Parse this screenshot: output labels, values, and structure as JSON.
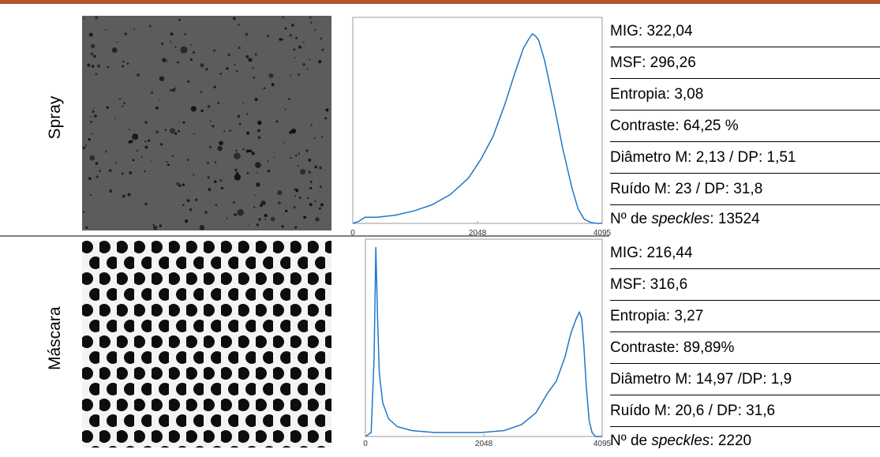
{
  "rows": [
    {
      "label": "Spray",
      "histogram": {
        "type": "line",
        "xlim": [
          0,
          4095
        ],
        "ylim": [
          0,
          1
        ],
        "xticks": [
          0,
          2048,
          4095
        ],
        "color": "#1f77c8",
        "x": [
          0,
          100,
          200,
          300,
          400,
          700,
          1000,
          1300,
          1600,
          1900,
          2100,
          2300,
          2500,
          2650,
          2800,
          2900,
          2950,
          3000,
          3050,
          3150,
          3300,
          3450,
          3600,
          3700,
          3800,
          3900,
          4000,
          4095
        ],
        "values": [
          0,
          0.01,
          0.03,
          0.03,
          0.03,
          0.04,
          0.06,
          0.09,
          0.14,
          0.22,
          0.31,
          0.42,
          0.58,
          0.72,
          0.85,
          0.9,
          0.92,
          0.91,
          0.89,
          0.79,
          0.58,
          0.36,
          0.17,
          0.07,
          0.02,
          0.005,
          0,
          0
        ]
      },
      "stats": [
        "MIG: 322,04",
        "MSF: 296,26",
        "Entropia: 3,08",
        "Contraste: 64,25 %",
        "Diâmetro M: 2,13 / DP: 1,51",
        "Ruído M: 23 / DP: 31,8"
      ],
      "speckles": {
        "prefix": "Nº de ",
        "emph": "speckles",
        "suffix": ": 13524"
      }
    },
    {
      "label": "Máscara",
      "histogram": {
        "type": "line",
        "xlim": [
          0,
          4095
        ],
        "ylim": [
          0,
          1
        ],
        "xticks": [
          0,
          2048,
          4095
        ],
        "color": "#1f77c8",
        "x": [
          0,
          100,
          150,
          180,
          210,
          240,
          300,
          400,
          550,
          800,
          1200,
          1600,
          2000,
          2400,
          2700,
          2950,
          3150,
          3300,
          3450,
          3550,
          3650,
          3700,
          3740,
          3780,
          3820,
          3870,
          3920,
          3980,
          4095
        ],
        "values": [
          0,
          0.02,
          0.4,
          0.96,
          0.6,
          0.32,
          0.17,
          0.09,
          0.05,
          0.03,
          0.02,
          0.02,
          0.02,
          0.03,
          0.06,
          0.12,
          0.22,
          0.28,
          0.4,
          0.52,
          0.6,
          0.63,
          0.6,
          0.45,
          0.25,
          0.08,
          0.02,
          0,
          0
        ]
      },
      "stats": [
        "MIG: 216,44",
        "MSF: 316,6",
        "Entropia: 3,27",
        "Contraste: 89,89%",
        "Diâmetro M: 14,97 /DP: 1,9",
        "Ruído M: 20,6 / DP: 31,6"
      ],
      "speckles": {
        "prefix": "Nº de ",
        "emph": "speckles",
        "suffix": ": 2220"
      }
    }
  ]
}
